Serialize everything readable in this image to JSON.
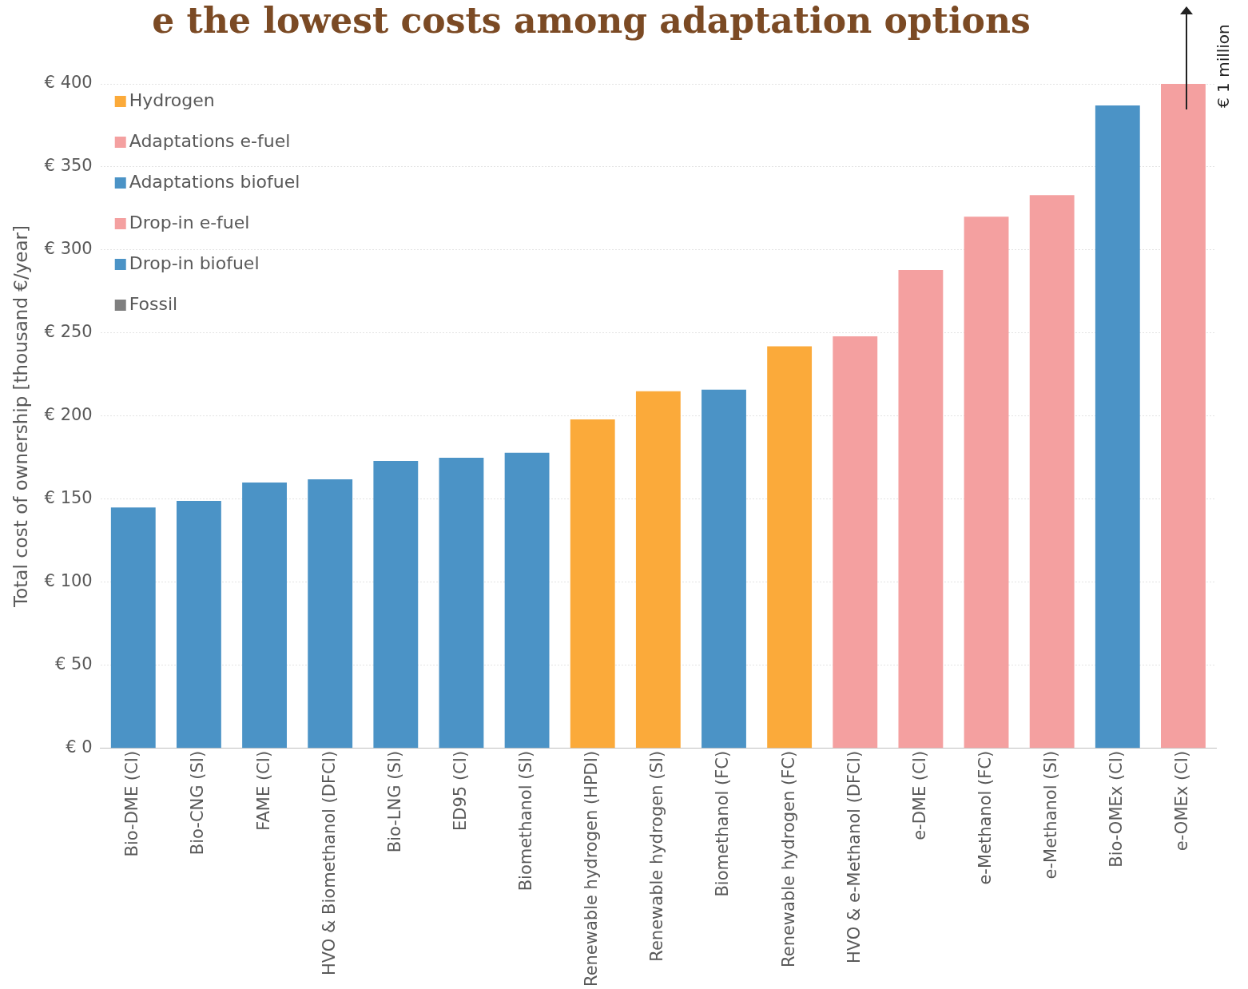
{
  "chart_data": {
    "type": "bar",
    "title": "e the lowest costs among adaptation options",
    "ylabel": "Total cost of ownership [thousand €/year]",
    "categories": [
      "Bio-DME (CI)",
      "Bio-CNG (SI)",
      "FAME (CI)",
      "HVO & Biomethanol (DFCI)",
      "Bio-LNG (SI)",
      "ED95 (CI)",
      "Biomethanol (SI)",
      "Renewable hydrogen (HPDI)",
      "Renewable hydrogen (SI)",
      "Biomethanol (FC)",
      "Renewable hydrogen (FC)",
      "HVO & e-Methanol (DFCI)",
      "e-DME (CI)",
      "e-Methanol (FC)",
      "e-Methanol (SI)",
      "Bio-OMEx (CI)",
      "e-OMEx (CI)"
    ],
    "stacked": true,
    "series": [
      {
        "name": "Hydrogen",
        "color": "#fbaa3a",
        "values": [
          null,
          null,
          null,
          null,
          null,
          null,
          null,
          198,
          215,
          null,
          242,
          null,
          null,
          null,
          null,
          null,
          null
        ]
      },
      {
        "name": "Adaptations e-fuel",
        "color": "#f4a0a0",
        "values": [
          null,
          null,
          null,
          null,
          null,
          null,
          null,
          null,
          null,
          null,
          null,
          248,
          288,
          320,
          333,
          null,
          400
        ]
      },
      {
        "name": "Adaptations biofuel",
        "color": "#4b93c6",
        "values": [
          145,
          149,
          160,
          162,
          173,
          175,
          178,
          null,
          null,
          216,
          null,
          null,
          null,
          null,
          null,
          387,
          null
        ]
      },
      {
        "name": "Drop-in e-fuel",
        "color": "#f4a0a0",
        "values": [
          null,
          null,
          null,
          null,
          null,
          null,
          null,
          null,
          null,
          null,
          null,
          null,
          null,
          null,
          null,
          null,
          null
        ]
      },
      {
        "name": "Drop-in biofuel",
        "color": "#4b93c6",
        "values": [
          null,
          null,
          null,
          null,
          null,
          null,
          null,
          null,
          null,
          null,
          null,
          null,
          null,
          null,
          null,
          null,
          null
        ]
      },
      {
        "name": "Fossil",
        "color": "#7f7f7f",
        "values": [
          null,
          null,
          null,
          null,
          null,
          null,
          null,
          null,
          null,
          null,
          null,
          null,
          null,
          null,
          null,
          null,
          null
        ]
      }
    ],
    "ylim": [
      0,
      400
    ],
    "yticks": [
      {
        "value": 0,
        "label": "€ 0"
      },
      {
        "value": 50,
        "label": "€ 50"
      },
      {
        "value": 100,
        "label": "€ 100"
      },
      {
        "value": 150,
        "label": "€ 150"
      },
      {
        "value": 200,
        "label": "€ 200"
      },
      {
        "value": 250,
        "label": "€ 250"
      },
      {
        "value": 300,
        "label": "€ 300"
      },
      {
        "value": 350,
        "label": "€ 350"
      },
      {
        "value": 400,
        "label": "€ 400"
      }
    ],
    "grid": "y",
    "legend": "top left",
    "annotations": [
      {
        "text": "€ 1 million",
        "x": "e-OMEx (CI)",
        "y": 400
      }
    ]
  }
}
